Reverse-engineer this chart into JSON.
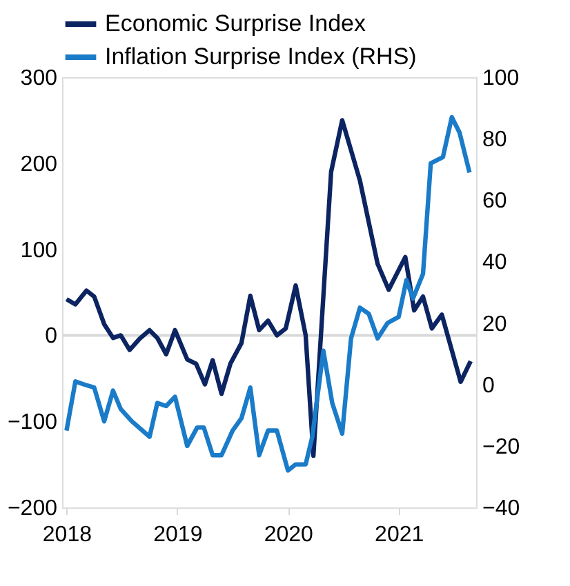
{
  "chart_data": {
    "type": "line",
    "xlim": [
      2017.96,
      2021.7
    ],
    "xticks": [
      2018,
      2019,
      2020,
      2021
    ],
    "ylim": [
      -200,
      300
    ],
    "yticks": [
      -200,
      -100,
      0,
      100,
      200,
      300
    ],
    "y2lim": [
      -40,
      100
    ],
    "y2ticks": [
      -40,
      -20,
      0,
      20,
      40,
      60,
      80,
      100
    ],
    "legend": "top",
    "grid": false,
    "line_style": "solid",
    "marker": "none",
    "ref_lines": [
      {
        "axis": "y",
        "value": 0,
        "color": "#d9d9d9"
      }
    ],
    "series": [
      {
        "name": "Economic Surprise Index",
        "color": "#0c2461",
        "x": [
          2018.0,
          2018.08,
          2018.18,
          2018.25,
          2018.34,
          2018.42,
          2018.49,
          2018.57,
          2018.66,
          2018.75,
          2018.82,
          2018.9,
          2018.98,
          2019.09,
          2019.17,
          2019.25,
          2019.32,
          2019.4,
          2019.48,
          2019.58,
          2019.66,
          2019.74,
          2019.82,
          2019.9,
          2019.98,
          2020.07,
          2020.16,
          2020.23,
          2020.39,
          2020.49,
          2020.65,
          2020.81,
          2020.91,
          2021.06,
          2021.14,
          2021.22,
          2021.3,
          2021.39,
          2021.56,
          2021.65
        ],
        "values": [
          42,
          36,
          52,
          45,
          13,
          -3,
          0,
          -17,
          -4,
          6,
          -3,
          -22,
          6,
          -28,
          -33,
          -57,
          -29,
          -68,
          -33,
          -9,
          46,
          6,
          17,
          0,
          8,
          58,
          0,
          -140,
          190,
          250,
          180,
          83,
          53,
          91,
          29,
          45,
          8,
          24,
          -54,
          -30
        ]
      },
      {
        "name": "Inflation Surprise Index (RHS)",
        "color": "#1a7bc9",
        "axis": "y2",
        "x": [
          2018.0,
          2018.08,
          2018.16,
          2018.25,
          2018.34,
          2018.42,
          2018.49,
          2018.59,
          2018.75,
          2018.82,
          2018.9,
          2018.98,
          2019.09,
          2019.18,
          2019.24,
          2019.32,
          2019.4,
          2019.5,
          2019.58,
          2019.66,
          2019.74,
          2019.82,
          2019.9,
          2020.0,
          2020.07,
          2020.16,
          2020.22,
          2020.32,
          2020.4,
          2020.49,
          2020.57,
          2020.65,
          2020.73,
          2020.81,
          2020.9,
          2021.0,
          2021.07,
          2021.13,
          2021.22,
          2021.29,
          2021.4,
          2021.48,
          2021.55,
          2021.64
        ],
        "values": [
          -15,
          1,
          0,
          -1,
          -12,
          -2,
          -8,
          -12,
          -17,
          -6,
          -7,
          -4,
          -20,
          -14,
          -14,
          -23,
          -23,
          -15,
          -11,
          -1,
          -23,
          -15,
          -15,
          -28,
          -26,
          -26,
          -17,
          11,
          -6,
          -16,
          15,
          25,
          23,
          15,
          20,
          22,
          34,
          28,
          36,
          72,
          74,
          87,
          82,
          69
        ]
      }
    ]
  }
}
